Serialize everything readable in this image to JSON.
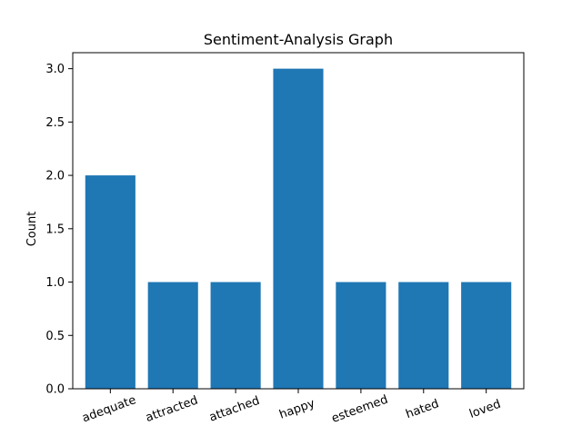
{
  "chart_data": {
    "type": "bar",
    "title": "Sentiment-Analysis Graph",
    "xlabel": "",
    "ylabel": "Count",
    "categories": [
      "adequate",
      "attracted",
      "attached",
      "happy",
      "esteemed",
      "hated",
      "loved"
    ],
    "values": [
      2,
      1,
      1,
      3,
      1,
      1,
      1
    ],
    "ylim": [
      0,
      3.15
    ],
    "yticks": [
      "0.0",
      "0.5",
      "1.0",
      "1.5",
      "2.0",
      "2.5",
      "3.0"
    ],
    "x_tick_rotation": 20,
    "grid": false,
    "bar_color": "#1f77b4"
  }
}
